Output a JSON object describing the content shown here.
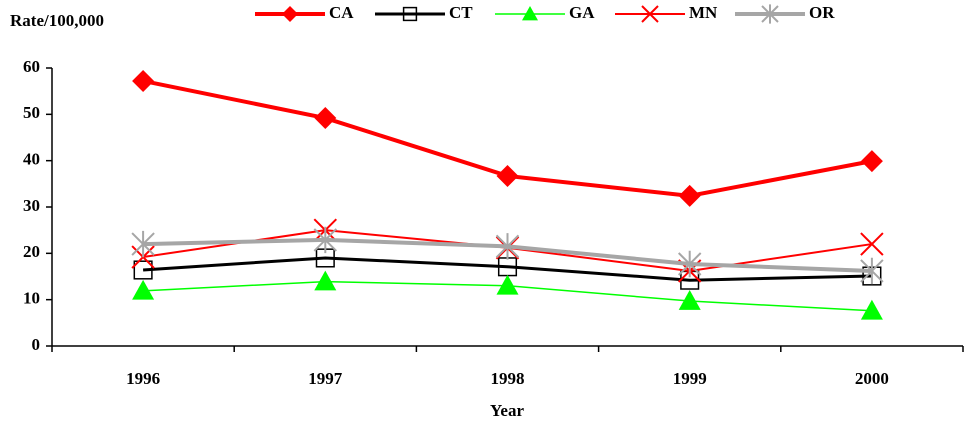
{
  "chart_data": {
    "type": "line",
    "y_label": "Rate/100,000",
    "x_label": "Year",
    "categories": [
      "1996",
      "1997",
      "1998",
      "1999",
      "2000"
    ],
    "ylim": [
      0,
      60
    ],
    "yticks": [
      0,
      10,
      20,
      30,
      40,
      50,
      60
    ],
    "legend": "top",
    "series": [
      {
        "name": "CA",
        "color": "#ff0000",
        "marker": "diamond",
        "values": [
          57.2,
          49.2,
          36.7,
          32.4,
          39.9
        ]
      },
      {
        "name": "CT",
        "color": "#000000",
        "marker": "square",
        "values": [
          16.4,
          19.0,
          17.1,
          14.2,
          15.1
        ]
      },
      {
        "name": "GA",
        "color": "#00ff00",
        "marker": "triangle",
        "values": [
          11.9,
          13.9,
          13.0,
          9.7,
          7.6
        ]
      },
      {
        "name": "MN",
        "color": "#ff0000",
        "marker": "x",
        "values": [
          19.2,
          25.0,
          21.2,
          16.2,
          22.0
        ]
      },
      {
        "name": "OR",
        "color": "#a6a6a6",
        "marker": "asterisk",
        "values": [
          22.0,
          22.9,
          21.5,
          17.7,
          16.2
        ]
      }
    ]
  }
}
